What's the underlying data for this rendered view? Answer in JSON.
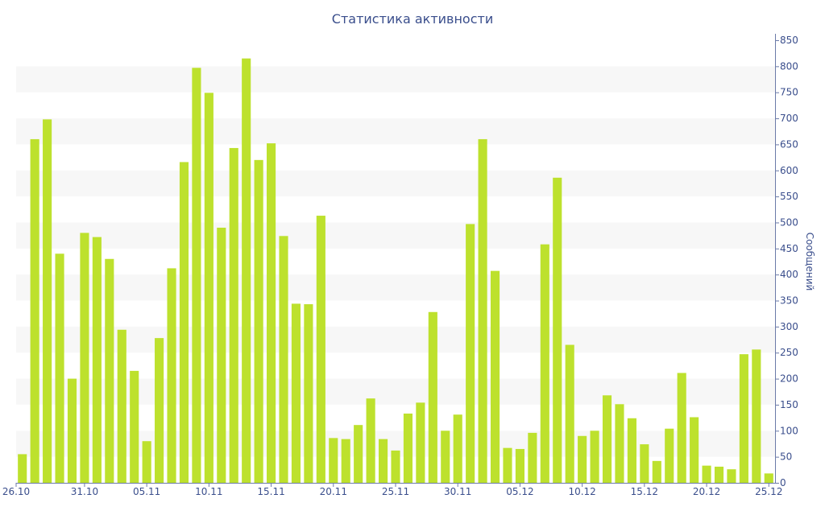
{
  "chart_data": {
    "type": "bar",
    "title": "Статистика активности",
    "xlabel": "",
    "ylabel": "Сообщений",
    "ylim": [
      0,
      850
    ],
    "y_axis_side": "right",
    "y_ticks": [
      0,
      50,
      100,
      150,
      200,
      250,
      300,
      350,
      400,
      450,
      500,
      550,
      600,
      650,
      700,
      750,
      800,
      850
    ],
    "x_tick_labels": [
      {
        "index": 0,
        "label": "26.10"
      },
      {
        "index": 5,
        "label": "31.10"
      },
      {
        "index": 10,
        "label": "05.11"
      },
      {
        "index": 15,
        "label": "10.11"
      },
      {
        "index": 20,
        "label": "15.11"
      },
      {
        "index": 25,
        "label": "20.11"
      },
      {
        "index": 30,
        "label": "25.11"
      },
      {
        "index": 35,
        "label": "30.11"
      },
      {
        "index": 40,
        "label": "05.12"
      },
      {
        "index": 45,
        "label": "10.12"
      },
      {
        "index": 50,
        "label": "15.12"
      },
      {
        "index": 55,
        "label": "20.12"
      },
      {
        "index": 60,
        "label": "25.12"
      }
    ],
    "categories": [
      "26.10",
      "27.10",
      "28.10",
      "29.10",
      "30.10",
      "31.10",
      "01.11",
      "02.11",
      "03.11",
      "04.11",
      "05.11",
      "06.11",
      "07.11",
      "08.11",
      "09.11",
      "10.11",
      "11.11",
      "12.11",
      "13.11",
      "14.11",
      "15.11",
      "16.11",
      "17.11",
      "18.11",
      "19.11",
      "20.11",
      "21.11",
      "22.11",
      "23.11",
      "24.11",
      "25.11",
      "26.11",
      "27.11",
      "28.11",
      "29.11",
      "30.11",
      "01.12",
      "02.12",
      "03.12",
      "04.12",
      "05.12",
      "06.12",
      "07.12",
      "08.12",
      "09.12",
      "10.12",
      "11.12",
      "12.12",
      "13.12",
      "14.12",
      "15.12",
      "16.12",
      "17.12",
      "18.12",
      "19.12",
      "20.12",
      "21.12",
      "22.12",
      "23.12",
      "24.12",
      "25.12"
    ],
    "values": [
      55,
      660,
      698,
      440,
      200,
      480,
      472,
      430,
      294,
      215,
      80,
      278,
      412,
      616,
      797,
      749,
      490,
      643,
      815,
      620,
      652,
      474,
      344,
      343,
      513,
      86,
      84,
      111,
      162,
      84,
      62,
      133,
      154,
      328,
      100,
      131,
      497,
      660,
      407,
      67,
      65,
      96,
      458,
      586,
      265,
      90,
      100,
      168,
      151,
      124,
      74,
      42,
      104,
      211,
      126,
      33,
      31,
      26,
      247,
      256,
      18
    ],
    "bar_color": "#bde12d",
    "band_color": "#f7f7f7",
    "text_color": "#3a4e8c",
    "grid": "alternating horizontal bands",
    "legend": "none"
  }
}
